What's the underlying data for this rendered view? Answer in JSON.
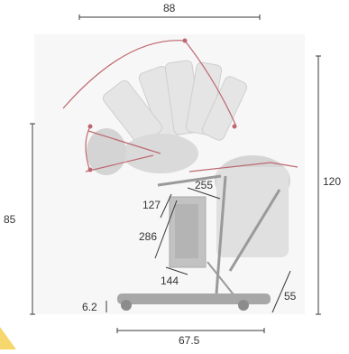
{
  "dimensions": {
    "top_width": "88",
    "bottom_width": "67.5",
    "left_height": "85",
    "right_height": "120",
    "backrest_width": "255",
    "seat_offset": "127",
    "seat_diagonal": "286",
    "seat_depth": "144",
    "base_height": "6.2",
    "leg_angle_length": "55"
  },
  "colors": {
    "dimension_line": "#3a3a3a",
    "chair_body": "#d8d8d8",
    "chair_shadow": "#bdbdbd",
    "accent_red": "#b4505a",
    "corner_accent": "#f5d76e"
  }
}
